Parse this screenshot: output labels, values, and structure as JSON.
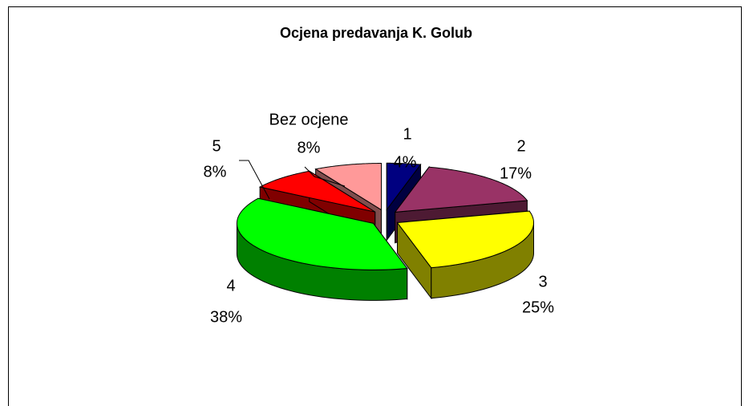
{
  "chart_data": {
    "type": "pie3d",
    "title": "Ocjena predavanja K. Golub",
    "categories": [
      "1",
      "2",
      "3",
      "4",
      "5",
      "Bez ocjene"
    ],
    "values": [
      4,
      17,
      25,
      38,
      8,
      8
    ],
    "value_labels": [
      "4%",
      "17%",
      "25%",
      "38%",
      "8%",
      "8%"
    ],
    "colors": [
      "#000080",
      "#993366",
      "#ffff00",
      "#00ff00",
      "#ff0000",
      "#ff9999"
    ]
  }
}
